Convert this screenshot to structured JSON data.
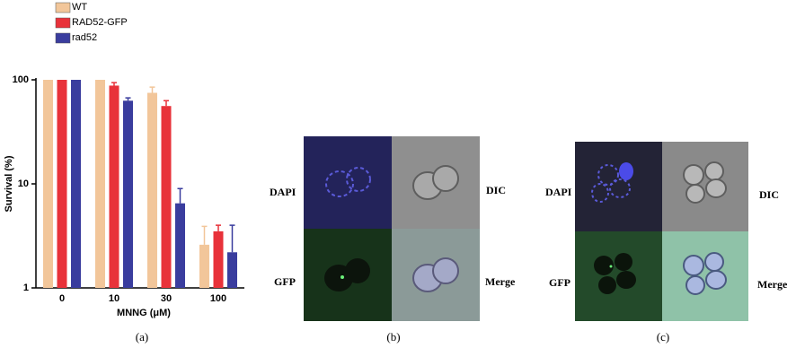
{
  "chart_data": {
    "type": "bar",
    "log_y": true,
    "categories": [
      "0",
      "10",
      "30",
      "100"
    ],
    "x_label": "MNNG (μM)",
    "y_label": "Survival (%)",
    "series": [
      {
        "name": "WT",
        "color": "#f2c69a",
        "values": [
          100,
          100,
          75,
          2.6
        ],
        "errors": [
          0,
          0,
          10,
          1.3
        ]
      },
      {
        "name": "RAD52-GFP",
        "color": "#e8323a",
        "values": [
          100,
          88,
          56,
          3.5
        ],
        "errors": [
          0,
          6,
          7,
          0.5
        ]
      },
      {
        "name": "rad52",
        "color": "#3a3d9e",
        "values": [
          100,
          63,
          6.5,
          2.2
        ],
        "errors": [
          0,
          4,
          2.5,
          1.8
        ]
      }
    ],
    "ylim": [
      1,
      100
    ],
    "yticks": [
      1,
      10,
      100
    ],
    "caption": "(a)"
  },
  "panels": [
    {
      "caption": "(b)",
      "labels": [
        "DAPI",
        "DIC",
        "GFP",
        "Merge"
      ]
    },
    {
      "caption": "(c)",
      "labels": [
        "DAPI",
        "DIC",
        "GFP",
        "Merge"
      ]
    }
  ]
}
